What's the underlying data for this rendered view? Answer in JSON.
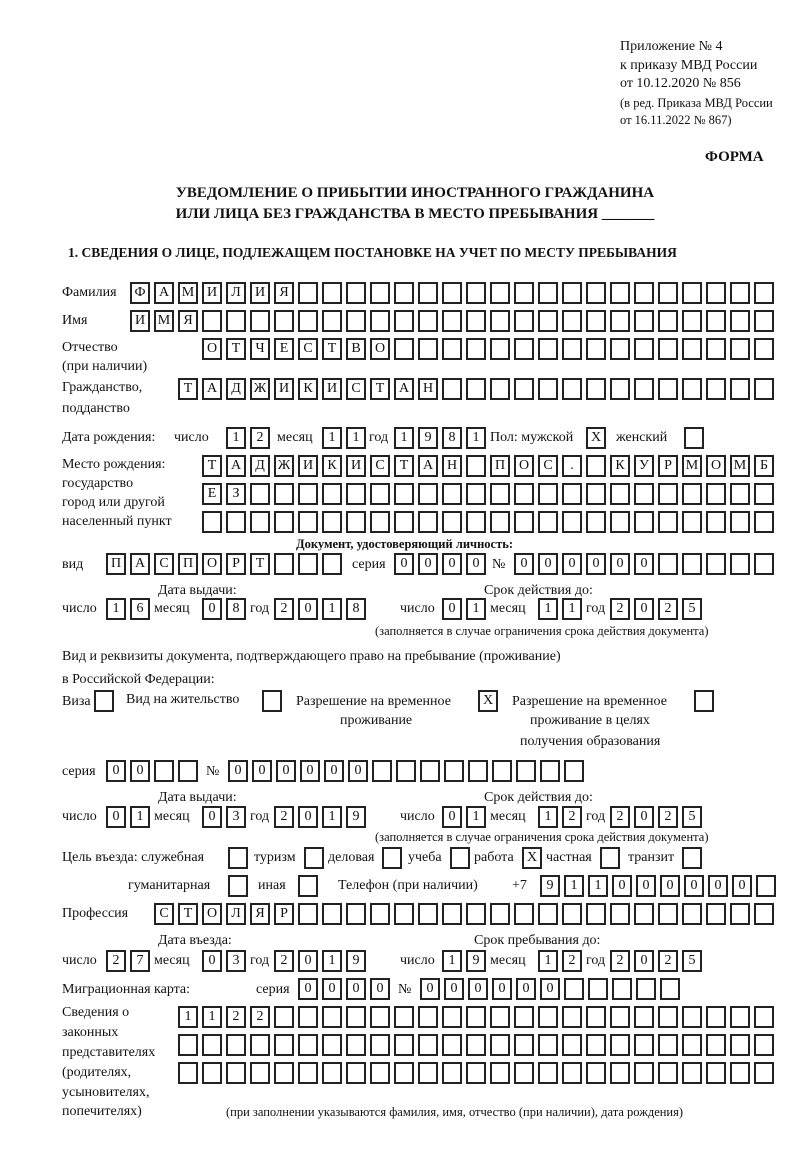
{
  "header": {
    "appendix": "Приложение № 4",
    "order": "к приказу МВД России",
    "order_date": "от 10.12.2020 № 856",
    "revision1": "(в ред. Приказа МВД России",
    "revision2": "от 16.11.2022 № 867)",
    "form_label": "ФОРМА",
    "title1": "УВЕДОМЛЕНИЕ О ПРИБЫТИИ ИНОСТРАННОГО ГРАЖДАНИНА",
    "title2": "ИЛИ ЛИЦА БЕЗ ГРАЖДАНСТВА В МЕСТО ПРЕБЫВАНИЯ _______",
    "section1": "1. СВЕДЕНИЯ О ЛИЦЕ, ПОДЛЕЖАЩЕМ ПОСТАНОВКЕ НА УЧЕТ ПО МЕСТУ ПРЕБЫВАНИЯ"
  },
  "labels": {
    "surname": "Фамилия",
    "name": "Имя",
    "patronymic": "Отчество",
    "patronymic2": "(при наличии)",
    "citizenship": "Гражданство,",
    "citizenship2": "подданство",
    "birth_date": "Дата рождения:",
    "day": "число",
    "month": "месяц",
    "year": "год",
    "sex": "Пол: мужской",
    "female": "женский",
    "birth_place": "Место рождения:",
    "birth_place2": "государство",
    "birth_place3": "город или другой",
    "birth_place4": "населенный пункт",
    "id_doc": "Документ, удостоверяющий личность:",
    "kind": "вид",
    "series": "серия",
    "number": "№",
    "issue_date": "Дата выдачи:",
    "valid_until": "Срок действия до:",
    "valid_note": "(заполняется в случае ограничения срока действия документа)",
    "stay_doc1": "Вид и реквизиты документа, подтверждающего право на пребывание (проживание)",
    "stay_doc2": "в Российской Федерации:",
    "visa": "Виза",
    "residence": "Вид на жительство",
    "trp1": "Разрешение на временное",
    "trp2": "проживание",
    "trp_edu1": "Разрешение на временное",
    "trp_edu2": "проживание в целях",
    "trp_edu3": "получения образования",
    "purpose": "Цель въезда: служебная",
    "tourism": "туризм",
    "business": "деловая",
    "study": "учеба",
    "work": "работа",
    "private": "частная",
    "transit": "транзит",
    "humanitarian": "гуманитарная",
    "other": "иная",
    "phone": "Телефон (при наличии)",
    "phone_prefix": "+7",
    "profession": "Профессия",
    "entry_date": "Дата въезда:",
    "stay_until": "Срок пребывания до:",
    "migration_card": "Миграционная карта:",
    "reps1": "Сведения о",
    "reps2": "законных",
    "reps3": "представителях",
    "reps4": "(родителях,",
    "reps5": "усыновителях,",
    "reps6": "попечителях)",
    "reps_note": "(при заполнении указываются фамилия, имя, отчество (при наличии), дата рождения)"
  },
  "person": {
    "surname": "ФАМИЛИЯ",
    "name": "ИМЯ",
    "patronymic": "ОТЧЕСТВО",
    "citizenship": "ТАДЖИКИСТАН",
    "birth": {
      "day": "12",
      "month": "11",
      "year": "1981"
    },
    "sex_male": "X",
    "sex_female": "",
    "birth_place": [
      "ТАДЖИКИСТАН ПОС. КУРМОМБ",
      "ЕЗ",
      ""
    ]
  },
  "id_document": {
    "kind": "ПАСПОРТ",
    "series": "0000",
    "number": "000000",
    "issue": {
      "day": "16",
      "month": "08",
      "year": "2018"
    },
    "valid": {
      "day": "01",
      "month": "11",
      "year": "2025"
    }
  },
  "stay_document": {
    "visa": "",
    "residence": "",
    "trp": "X",
    "trp_edu": "",
    "series": "00",
    "number": "000000",
    "issue": {
      "day": "01",
      "month": "03",
      "year": "2019"
    },
    "valid": {
      "day": "01",
      "month": "12",
      "year": "2025"
    }
  },
  "purpose": {
    "official": "",
    "tourism": "",
    "business": "",
    "study": "",
    "work": "X",
    "private": "",
    "transit": "",
    "humanitarian": "",
    "other": ""
  },
  "phone": "911000000",
  "profession": "СТОЛЯР",
  "entry": {
    "day": "27",
    "month": "03",
    "year": "2019"
  },
  "stay_until": {
    "day": "19",
    "month": "12",
    "year": "2025"
  },
  "migration_card": {
    "series": "0000",
    "number": "000000"
  },
  "representatives": [
    "1122",
    "",
    ""
  ]
}
